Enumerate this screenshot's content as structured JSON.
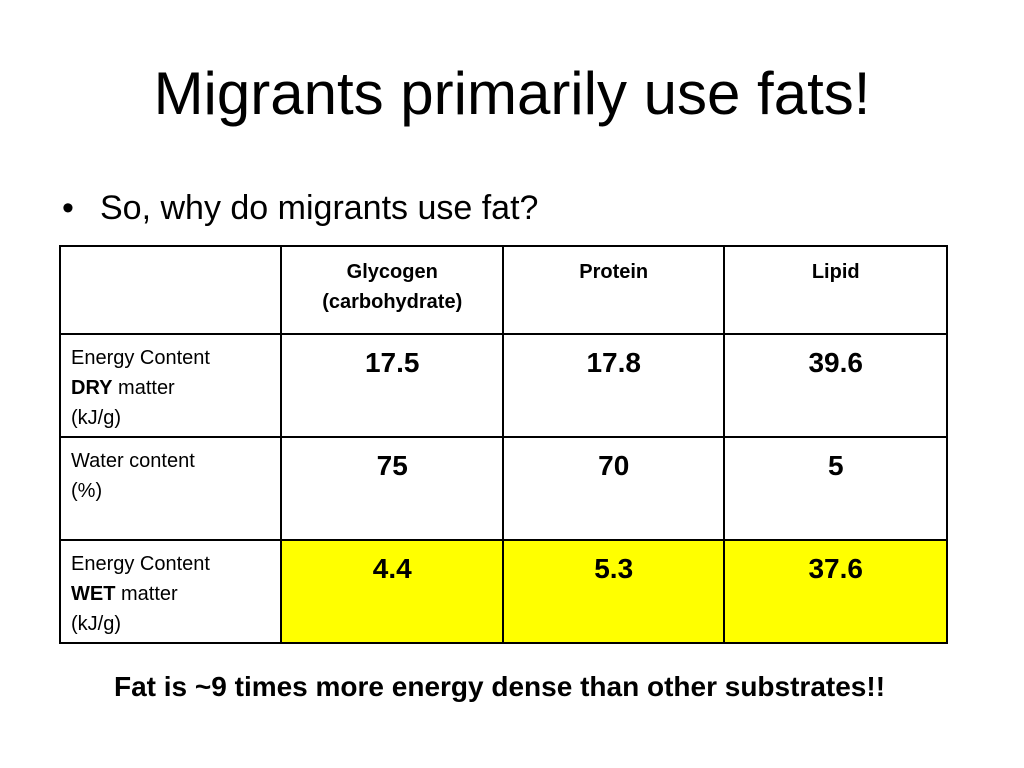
{
  "slide": {
    "title": "Migrants primarily use fats!",
    "bullet_symbol": "•",
    "bullet_text": "So, why do migrants use fat?",
    "conclusion": "Fat is ~9 times more energy dense than other substrates!!"
  },
  "table": {
    "headers": {
      "corner": "",
      "glycogen_line1": "Glycogen",
      "glycogen_line2": "(carbohydrate)",
      "protein": "Protein",
      "lipid": "Lipid"
    },
    "rows": [
      {
        "label_line1": "Energy Content",
        "label_bold": "DRY",
        "label_rest": " matter",
        "label_line3": "(kJ/g)",
        "values": [
          "17.5",
          "17.8",
          "39.6"
        ]
      },
      {
        "label_line1": "Water content",
        "label_line2": "(%)",
        "values": [
          "75",
          "70",
          "5"
        ]
      },
      {
        "label_line1": "Energy Content",
        "label_bold": "WET",
        "label_rest": " matter",
        "label_line3": "(kJ/g)",
        "values": [
          "4.4",
          "5.3",
          "37.6"
        ]
      }
    ]
  },
  "colors": {
    "highlight": "#ffff00",
    "border": "#000000",
    "background": "#ffffff"
  }
}
